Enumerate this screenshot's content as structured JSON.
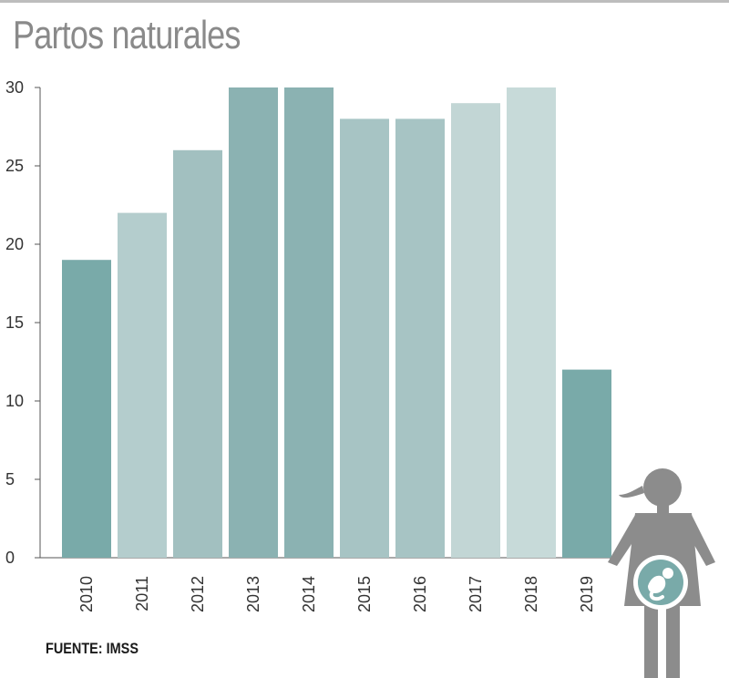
{
  "title": "Partos naturales",
  "source": "FUENTE: IMSS",
  "chart_data": {
    "type": "bar",
    "title": "Partos naturales",
    "xlabel": "",
    "ylabel": "",
    "categories": [
      "2010",
      "2011",
      "2012",
      "2013",
      "2014",
      "2015",
      "2016",
      "2017",
      "2018",
      "2019"
    ],
    "values": [
      19,
      22,
      26,
      30,
      30,
      28,
      28,
      29,
      30,
      12
    ],
    "ylim": [
      0,
      30
    ],
    "yticks": [
      0,
      5,
      10,
      15,
      20,
      25,
      30
    ],
    "grid": false,
    "bar_colors": [
      "#79aaa9",
      "#b4cdcd",
      "#a2c0c0",
      "#8bb2b2",
      "#8bb2b2",
      "#a7c4c4",
      "#a7c4c4",
      "#c2d6d5",
      "#c7dad9",
      "#79aaa9"
    ]
  },
  "icons": [
    "pregnant-woman-icon",
    "baby-icon"
  ],
  "colors": {
    "title": "#8a8a8a",
    "axis": "#555555",
    "figure": "#8c8c8c",
    "belly": "#79aaa9"
  }
}
